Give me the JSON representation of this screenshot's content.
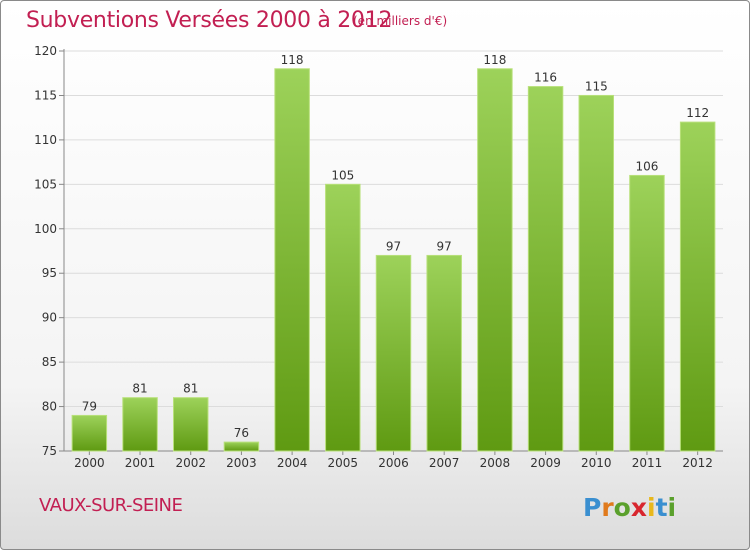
{
  "header": {
    "title": "Subventions Versées 2000 à 2012",
    "subtitle": "(en milliers d'€)"
  },
  "footer": {
    "commune": "VAUX-SUR-SEINE",
    "logo_text": "Proxiti"
  },
  "colors": {
    "accent": "#c21f52",
    "bar_top": "#9dd25a",
    "bar_bottom": "#5f9a12"
  },
  "chart_data": {
    "type": "bar",
    "categories": [
      "2000",
      "2001",
      "2002",
      "2003",
      "2004",
      "2005",
      "2006",
      "2007",
      "2008",
      "2009",
      "2010",
      "2011",
      "2012"
    ],
    "values": [
      79,
      81,
      81,
      76,
      118,
      105,
      97,
      97,
      118,
      116,
      115,
      106,
      112
    ],
    "title": "Subventions Versées 2000 à 2012",
    "xlabel": "",
    "ylabel": "",
    "ylim": [
      75,
      120
    ],
    "yticks": [
      75,
      80,
      85,
      90,
      95,
      100,
      105,
      110,
      115,
      120
    ],
    "grid": true,
    "legend": "none"
  }
}
